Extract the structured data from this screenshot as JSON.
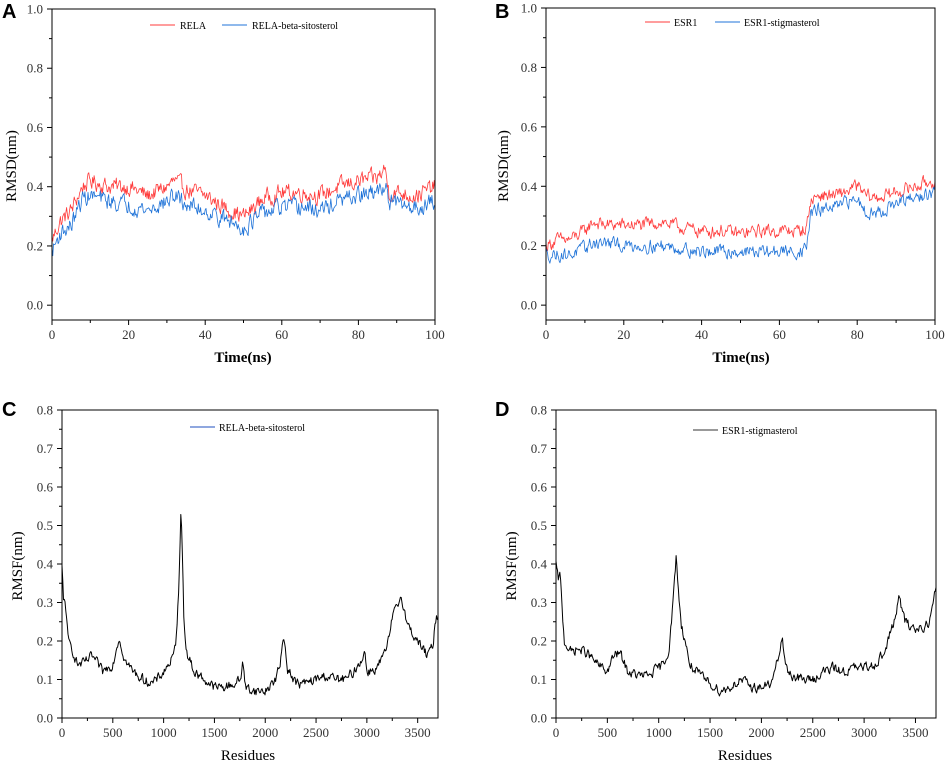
{
  "chart_data": [
    {
      "panel": "A",
      "type": "line",
      "xlabel": "Time(ns)",
      "ylabel": "RMSD(nm)",
      "xlim": [
        0,
        100
      ],
      "ylim": [
        -0.05,
        1.0
      ],
      "xticks": [
        "0",
        "20",
        "40",
        "60",
        "80",
        "100"
      ],
      "yticks": [
        "0.0",
        "0.2",
        "0.4",
        "0.6",
        "0.8",
        "1.0"
      ],
      "series": [
        {
          "name": "RELA",
          "color": "#ff3b3b",
          "noise": 0.045,
          "x": [
            0,
            2,
            5,
            8,
            10,
            15,
            20,
            25,
            30,
            32,
            35,
            40,
            45,
            50,
            52,
            55,
            60,
            65,
            70,
            75,
            80,
            85,
            87,
            88,
            90,
            95,
            100
          ],
          "y": [
            0.22,
            0.28,
            0.32,
            0.4,
            0.42,
            0.4,
            0.4,
            0.37,
            0.4,
            0.42,
            0.39,
            0.37,
            0.33,
            0.3,
            0.32,
            0.36,
            0.38,
            0.38,
            0.37,
            0.4,
            0.42,
            0.43,
            0.46,
            0.38,
            0.38,
            0.37,
            0.4
          ]
        },
        {
          "name": "RELA-beta-sitosterol",
          "color": "#1f73d8",
          "noise": 0.045,
          "x": [
            0,
            2,
            5,
            8,
            10,
            15,
            20,
            25,
            30,
            32,
            35,
            40,
            45,
            50,
            52,
            55,
            60,
            65,
            70,
            75,
            80,
            85,
            87,
            88,
            90,
            95,
            100
          ],
          "y": [
            0.18,
            0.24,
            0.27,
            0.36,
            0.37,
            0.35,
            0.34,
            0.32,
            0.35,
            0.37,
            0.34,
            0.32,
            0.29,
            0.26,
            0.28,
            0.31,
            0.33,
            0.33,
            0.32,
            0.35,
            0.37,
            0.38,
            0.41,
            0.35,
            0.34,
            0.33,
            0.35
          ]
        }
      ]
    },
    {
      "panel": "B",
      "type": "line",
      "xlabel": "Time(ns)",
      "ylabel": "RMSD(nm)",
      "xlim": [
        0,
        100
      ],
      "ylim": [
        -0.05,
        1.0
      ],
      "xticks": [
        "0",
        "20",
        "40",
        "60",
        "80",
        "100"
      ],
      "yticks": [
        "0.0",
        "0.2",
        "0.4",
        "0.6",
        "0.8",
        "1.0"
      ],
      "series": [
        {
          "name": "ESR1",
          "color": "#ff3b3b",
          "noise": 0.035,
          "x": [
            0,
            3,
            6,
            10,
            12,
            15,
            20,
            25,
            30,
            35,
            40,
            45,
            50,
            55,
            60,
            65,
            67,
            68,
            70,
            75,
            80,
            82,
            85,
            90,
            95,
            100
          ],
          "y": [
            0.2,
            0.22,
            0.22,
            0.25,
            0.28,
            0.27,
            0.27,
            0.27,
            0.28,
            0.26,
            0.25,
            0.25,
            0.24,
            0.25,
            0.25,
            0.25,
            0.26,
            0.35,
            0.37,
            0.37,
            0.4,
            0.37,
            0.36,
            0.38,
            0.4,
            0.42
          ]
        },
        {
          "name": "ESR1-stigmasterol",
          "color": "#1f73d8",
          "noise": 0.035,
          "x": [
            0,
            3,
            6,
            10,
            12,
            15,
            20,
            25,
            30,
            35,
            40,
            45,
            50,
            55,
            60,
            65,
            67,
            68,
            70,
            75,
            80,
            82,
            85,
            90,
            95,
            100
          ],
          "y": [
            0.17,
            0.17,
            0.17,
            0.19,
            0.21,
            0.21,
            0.2,
            0.2,
            0.2,
            0.19,
            0.18,
            0.18,
            0.18,
            0.18,
            0.18,
            0.18,
            0.19,
            0.31,
            0.32,
            0.33,
            0.36,
            0.32,
            0.31,
            0.34,
            0.36,
            0.38
          ]
        }
      ]
    },
    {
      "panel": "C",
      "type": "line",
      "xlabel": "Residues",
      "ylabel": "RMSF(nm)",
      "xlim": [
        0,
        3700
      ],
      "ylim": [
        0,
        0.8
      ],
      "xticks": [
        "0",
        "500",
        "1000",
        "1500",
        "2000",
        "2500",
        "3000",
        "3500"
      ],
      "yticks": [
        "0.0",
        "0.1",
        "0.2",
        "0.3",
        "0.4",
        "0.5",
        "0.6",
        "0.7",
        "0.8"
      ],
      "series": [
        {
          "name": "RELA-beta-sitosterol",
          "legend_color": "#1f4fbf",
          "color": "#000000",
          "noise": 0.02,
          "x": [
            0,
            15,
            30,
            60,
            100,
            150,
            200,
            300,
            400,
            500,
            560,
            620,
            700,
            800,
            900,
            1000,
            1050,
            1100,
            1130,
            1150,
            1170,
            1185,
            1200,
            1230,
            1300,
            1400,
            1500,
            1600,
            1700,
            1760,
            1780,
            1800,
            1900,
            2000,
            2100,
            2150,
            2180,
            2220,
            2300,
            2400,
            2500,
            2600,
            2700,
            2800,
            2900,
            2980,
            3000,
            3100,
            3200,
            3250,
            3300,
            3340,
            3400,
            3500,
            3600,
            3650,
            3680
          ],
          "y": [
            0.39,
            0.3,
            0.31,
            0.2,
            0.18,
            0.14,
            0.14,
            0.16,
            0.12,
            0.14,
            0.21,
            0.15,
            0.12,
            0.1,
            0.09,
            0.12,
            0.14,
            0.16,
            0.22,
            0.35,
            0.55,
            0.42,
            0.25,
            0.17,
            0.12,
            0.1,
            0.08,
            0.08,
            0.09,
            0.1,
            0.16,
            0.08,
            0.07,
            0.07,
            0.1,
            0.14,
            0.22,
            0.13,
            0.09,
            0.09,
            0.1,
            0.11,
            0.1,
            0.1,
            0.13,
            0.17,
            0.12,
            0.13,
            0.18,
            0.26,
            0.29,
            0.32,
            0.24,
            0.2,
            0.16,
            0.19,
            0.26
          ]
        }
      ]
    },
    {
      "panel": "D",
      "type": "line",
      "xlabel": "Residues",
      "ylabel": "RMSF(nm)",
      "xlim": [
        0,
        3700
      ],
      "ylim": [
        0,
        0.8
      ],
      "xticks": [
        "0",
        "500",
        "1000",
        "1500",
        "2000",
        "2500",
        "3000",
        "3500"
      ],
      "yticks": [
        "0.0",
        "0.1",
        "0.2",
        "0.3",
        "0.4",
        "0.5",
        "0.6",
        "0.7",
        "0.8"
      ],
      "series": [
        {
          "name": "ESR1-stigmasterol",
          "legend_color": "#333333",
          "color": "#000000",
          "noise": 0.02,
          "x": [
            0,
            20,
            40,
            80,
            150,
            200,
            300,
            400,
            500,
            560,
            620,
            700,
            800,
            900,
            1000,
            1050,
            1100,
            1140,
            1170,
            1190,
            1220,
            1260,
            1300,
            1400,
            1500,
            1600,
            1700,
            1800,
            1900,
            2000,
            2100,
            2170,
            2200,
            2240,
            2300,
            2400,
            2500,
            2600,
            2700,
            2800,
            2900,
            3000,
            3100,
            3200,
            3300,
            3340,
            3400,
            3500,
            3600,
            3650,
            3690
          ],
          "y": [
            0.4,
            0.36,
            0.37,
            0.2,
            0.17,
            0.18,
            0.17,
            0.14,
            0.12,
            0.16,
            0.17,
            0.12,
            0.11,
            0.11,
            0.13,
            0.14,
            0.18,
            0.3,
            0.42,
            0.34,
            0.24,
            0.2,
            0.14,
            0.11,
            0.09,
            0.07,
            0.08,
            0.1,
            0.08,
            0.08,
            0.09,
            0.16,
            0.21,
            0.13,
            0.11,
            0.1,
            0.1,
            0.12,
            0.13,
            0.12,
            0.13,
            0.13,
            0.14,
            0.17,
            0.26,
            0.31,
            0.25,
            0.23,
            0.24,
            0.26,
            0.33
          ]
        }
      ]
    }
  ]
}
